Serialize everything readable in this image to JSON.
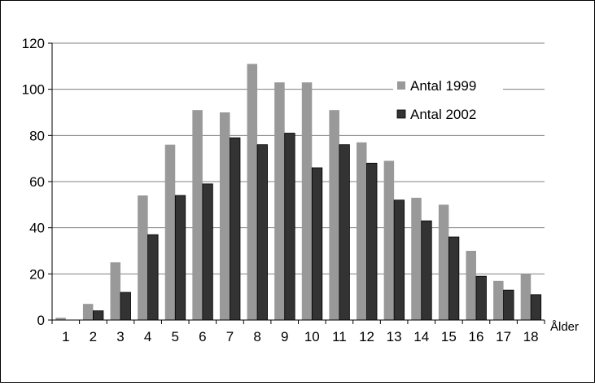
{
  "chart_data": {
    "type": "bar",
    "title": "",
    "xlabel": "Ålder",
    "ylabel": "",
    "categories": [
      "1",
      "2",
      "3",
      "4",
      "5",
      "6",
      "7",
      "8",
      "9",
      "10",
      "11",
      "12",
      "13",
      "14",
      "15",
      "16",
      "17",
      "18"
    ],
    "series": [
      {
        "name": "Antal 1999",
        "color": "#999999",
        "values": [
          1,
          7,
          25,
          54,
          76,
          91,
          90,
          111,
          103,
          103,
          91,
          77,
          69,
          53,
          50,
          30,
          17,
          20
        ]
      },
      {
        "name": "Antal 2002",
        "color": "#333333",
        "values": [
          0,
          4,
          12,
          37,
          54,
          59,
          79,
          76,
          81,
          66,
          76,
          68,
          52,
          43,
          36,
          19,
          13,
          11
        ]
      }
    ],
    "ylim": [
      0,
      120
    ],
    "yticks": [
      "0",
      "20",
      "40",
      "60",
      "80",
      "100",
      "120"
    ],
    "grid": true,
    "legend": "top-right"
  }
}
